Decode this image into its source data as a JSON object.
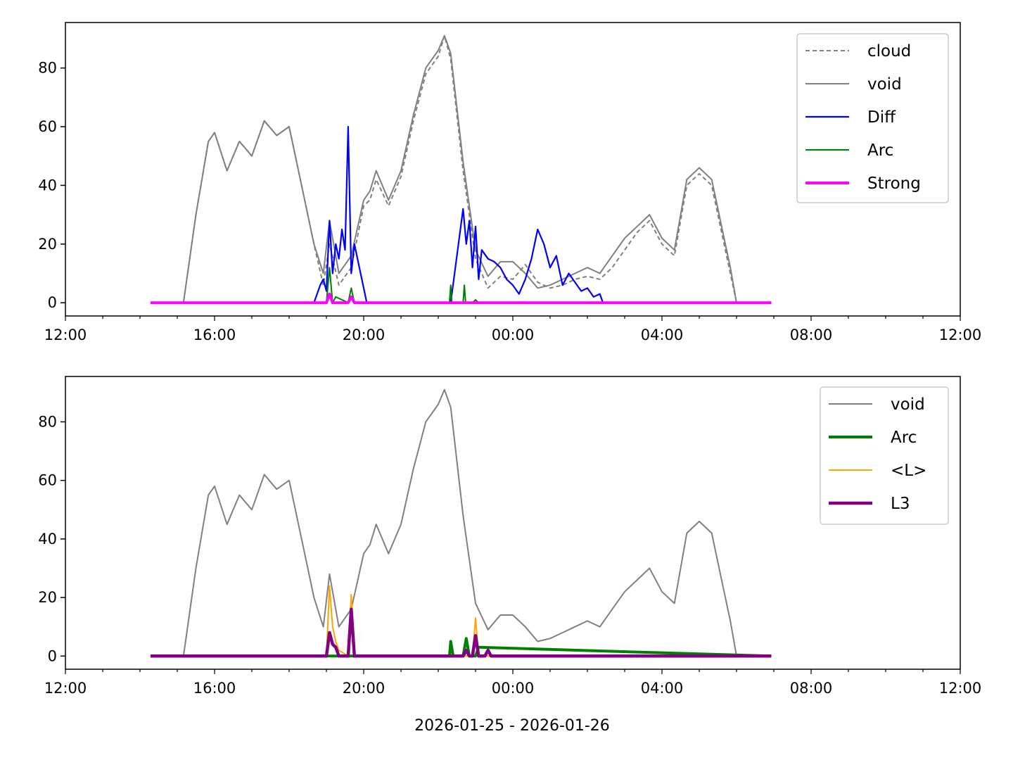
{
  "chart_data": [
    {
      "type": "line",
      "title": "",
      "xlabel": "",
      "ylabel": "",
      "xlim": [
        "2026-01-25 12:00",
        "2026-01-26 12:00"
      ],
      "ylim": [
        -4.5,
        95.5
      ],
      "yticks": [
        0,
        20,
        40,
        60,
        80
      ],
      "xticks": [
        "12:00",
        "16:00",
        "20:00",
        "00:00",
        "04:00",
        "08:00",
        "12:00"
      ],
      "grid": false,
      "legend_position": "top-right",
      "series": [
        {
          "name": "cloud",
          "color": "#808080",
          "style": "dashed",
          "x": [
            "14:17",
            "15:10",
            "15:30",
            "15:50",
            "16:00",
            "16:20",
            "16:40",
            "17:00",
            "17:20",
            "17:40",
            "18:00",
            "18:20",
            "18:40",
            "18:55",
            "19:05",
            "19:20",
            "19:40",
            "20:00",
            "20:10",
            "20:20",
            "20:40",
            "21:00",
            "21:20",
            "21:40",
            "22:00",
            "22:10",
            "22:20",
            "22:40",
            "23:00",
            "23:20",
            "23:40",
            "00:00",
            "00:20",
            "00:40",
            "01:00",
            "01:20",
            "01:40",
            "02:00",
            "02:20",
            "02:40",
            "03:00",
            "03:20",
            "03:40",
            "04:00",
            "04:20",
            "04:40",
            "05:00",
            "05:20",
            "05:40",
            "05:50",
            "06:00",
            "06:56"
          ],
          "y": [
            0,
            0,
            30,
            55,
            58,
            45,
            55,
            50,
            62,
            57,
            60,
            40,
            20,
            6,
            20,
            6,
            12,
            33,
            35,
            42,
            33,
            43,
            62,
            78,
            84,
            91,
            83,
            45,
            15,
            5,
            9,
            8,
            13,
            7,
            5,
            6,
            8,
            9,
            8,
            12,
            18,
            24,
            28,
            20,
            16,
            40,
            44,
            40,
            20,
            10,
            0,
            0
          ]
        },
        {
          "name": "void",
          "color": "#808080",
          "style": "solid",
          "x": [
            "14:17",
            "15:10",
            "15:30",
            "15:50",
            "16:00",
            "16:20",
            "16:40",
            "17:00",
            "17:20",
            "17:40",
            "18:00",
            "18:20",
            "18:40",
            "18:55",
            "19:05",
            "19:20",
            "19:40",
            "20:00",
            "20:10",
            "20:20",
            "20:40",
            "21:00",
            "21:20",
            "21:40",
            "22:00",
            "22:10",
            "22:20",
            "22:40",
            "23:00",
            "23:20",
            "23:40",
            "00:00",
            "00:20",
            "00:40",
            "01:00",
            "01:20",
            "01:40",
            "02:00",
            "02:20",
            "02:40",
            "03:00",
            "03:20",
            "03:40",
            "04:00",
            "04:20",
            "04:40",
            "05:00",
            "05:20",
            "05:40",
            "05:50",
            "06:00",
            "06:56"
          ],
          "y": [
            0,
            0,
            30,
            55,
            58,
            45,
            55,
            50,
            62,
            57,
            60,
            40,
            20,
            10,
            28,
            10,
            16,
            35,
            38,
            45,
            35,
            45,
            64,
            80,
            86,
            91,
            85,
            48,
            18,
            9,
            14,
            14,
            10,
            5,
            6,
            8,
            10,
            12,
            10,
            16,
            22,
            26,
            30,
            22,
            18,
            42,
            46,
            42,
            22,
            12,
            0,
            0
          ]
        },
        {
          "name": "Diff",
          "color": "#0000ff",
          "style": "solid",
          "x": [
            "18:40",
            "18:50",
            "18:55",
            "19:00",
            "19:05",
            "19:10",
            "19:15",
            "19:20",
            "19:25",
            "19:30",
            "19:35",
            "19:40",
            "19:45",
            "19:50",
            "20:00",
            "20:05",
            "22:20",
            "22:40",
            "22:45",
            "22:50",
            "22:55",
            "23:00",
            "23:05",
            "23:10",
            "23:20",
            "23:30",
            "23:40",
            "23:50",
            "00:00",
            "00:10",
            "00:20",
            "00:30",
            "00:40",
            "00:50",
            "01:00",
            "01:10",
            "01:20",
            "01:30",
            "01:40",
            "01:50",
            "02:00",
            "02:10",
            "02:20",
            "02:25"
          ],
          "y": [
            0,
            6,
            8,
            4,
            28,
            10,
            20,
            15,
            25,
            18,
            60,
            10,
            20,
            15,
            5,
            0,
            0,
            32,
            20,
            28,
            12,
            26,
            8,
            18,
            15,
            14,
            12,
            8,
            6,
            3,
            8,
            15,
            25,
            20,
            12,
            16,
            6,
            10,
            7,
            4,
            5,
            2,
            3,
            0
          ]
        },
        {
          "name": "Arc",
          "color": "#008000",
          "style": "solid",
          "x": [
            "19:00",
            "19:05",
            "19:10",
            "19:15",
            "19:35",
            "19:40",
            "19:45",
            "22:18",
            "22:20",
            "22:22",
            "22:40",
            "22:42",
            "22:44",
            "22:55",
            "23:00",
            "23:05"
          ],
          "y": [
            0,
            12,
            0,
            2,
            0,
            5,
            0,
            0,
            6,
            0,
            0,
            6,
            0,
            0,
            1,
            0
          ]
        },
        {
          "name": "Strong",
          "color": "#ff00ff",
          "style": "solid",
          "x": [
            "14:17",
            "19:00",
            "19:05",
            "19:10",
            "19:35",
            "19:40",
            "19:45",
            "06:56"
          ],
          "y": [
            0,
            0,
            3,
            0,
            0,
            2,
            0,
            0
          ]
        }
      ]
    },
    {
      "type": "line",
      "title": "",
      "xlabel": "2026-01-25 - 2026-01-26",
      "ylabel": "",
      "xlim": [
        "2026-01-25 12:00",
        "2026-01-26 12:00"
      ],
      "ylim": [
        -4.5,
        95.5
      ],
      "yticks": [
        0,
        20,
        40,
        60,
        80
      ],
      "xticks": [
        "12:00",
        "16:00",
        "20:00",
        "00:00",
        "04:00",
        "08:00",
        "12:00"
      ],
      "grid": false,
      "legend_position": "top-right",
      "series": [
        {
          "name": "void",
          "color": "#808080",
          "style": "solid",
          "x": [
            "14:17",
            "15:10",
            "15:30",
            "15:50",
            "16:00",
            "16:20",
            "16:40",
            "17:00",
            "17:20",
            "17:40",
            "18:00",
            "18:20",
            "18:40",
            "18:55",
            "19:05",
            "19:20",
            "19:40",
            "20:00",
            "20:10",
            "20:20",
            "20:40",
            "21:00",
            "21:20",
            "21:40",
            "22:00",
            "22:10",
            "22:20",
            "22:40",
            "23:00",
            "23:20",
            "23:40",
            "00:00",
            "00:20",
            "00:40",
            "01:00",
            "01:20",
            "01:40",
            "02:00",
            "02:20",
            "02:40",
            "03:00",
            "03:20",
            "03:40",
            "04:00",
            "04:20",
            "04:40",
            "05:00",
            "05:20",
            "05:40",
            "05:50",
            "06:00",
            "06:56"
          ],
          "y": [
            0,
            0,
            30,
            55,
            58,
            45,
            55,
            50,
            62,
            57,
            60,
            40,
            20,
            10,
            28,
            10,
            16,
            35,
            38,
            45,
            35,
            45,
            64,
            80,
            86,
            91,
            85,
            48,
            18,
            9,
            14,
            14,
            10,
            5,
            6,
            8,
            10,
            12,
            10,
            16,
            22,
            26,
            30,
            22,
            18,
            42,
            46,
            42,
            22,
            12,
            0,
            0
          ]
        },
        {
          "name": "Arc",
          "color": "#008000",
          "style": "solid",
          "x": [
            "14:17",
            "22:18",
            "22:20",
            "22:24",
            "22:40",
            "22:45",
            "22:50",
            "23:00",
            "23:05",
            "06:56"
          ],
          "y": [
            0,
            0,
            5,
            0,
            0,
            6,
            0,
            0,
            3,
            0
          ]
        },
        {
          "name": "<L>",
          "color": "#ffa500",
          "style": "solid",
          "x": [
            "14:17",
            "19:00",
            "19:05",
            "19:10",
            "19:15",
            "19:20",
            "19:35",
            "19:40",
            "19:45",
            "22:55",
            "23:00",
            "23:05",
            "06:56"
          ],
          "y": [
            0,
            0,
            24,
            10,
            5,
            2,
            0,
            21,
            0,
            0,
            13,
            0,
            0
          ]
        },
        {
          "name": "L3",
          "color": "#800080",
          "style": "solid",
          "x": [
            "14:17",
            "19:00",
            "19:05",
            "19:10",
            "19:15",
            "19:20",
            "19:35",
            "19:40",
            "19:45",
            "22:40",
            "22:45",
            "22:50",
            "22:55",
            "23:00",
            "23:05",
            "23:15",
            "23:20",
            "23:25",
            "06:56"
          ],
          "y": [
            0,
            0,
            8,
            4,
            3,
            0,
            0,
            16,
            0,
            0,
            2,
            0,
            0,
            7,
            0,
            0,
            2,
            0,
            0
          ]
        }
      ]
    }
  ]
}
